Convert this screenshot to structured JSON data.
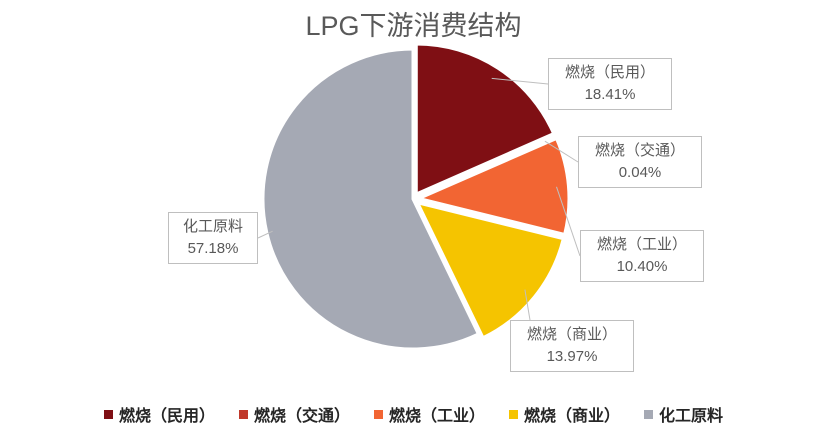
{
  "chart_data": {
    "type": "pie",
    "title": "LPG下游消费结构",
    "categories": [
      "燃烧（民用）",
      "燃烧（交通）",
      "燃烧（工业）",
      "燃烧（商业）",
      "化工原料"
    ],
    "values": [
      18.41,
      0.04,
      10.4,
      13.97,
      57.18
    ],
    "value_labels": [
      "18.41%",
      "0.04%",
      "10.40%",
      "13.97%",
      "57.18%"
    ],
    "colors": [
      "#7f0f14",
      "#c0392b",
      "#f26533",
      "#f5c400",
      "#a5a9b4"
    ],
    "legend": "bottom"
  }
}
